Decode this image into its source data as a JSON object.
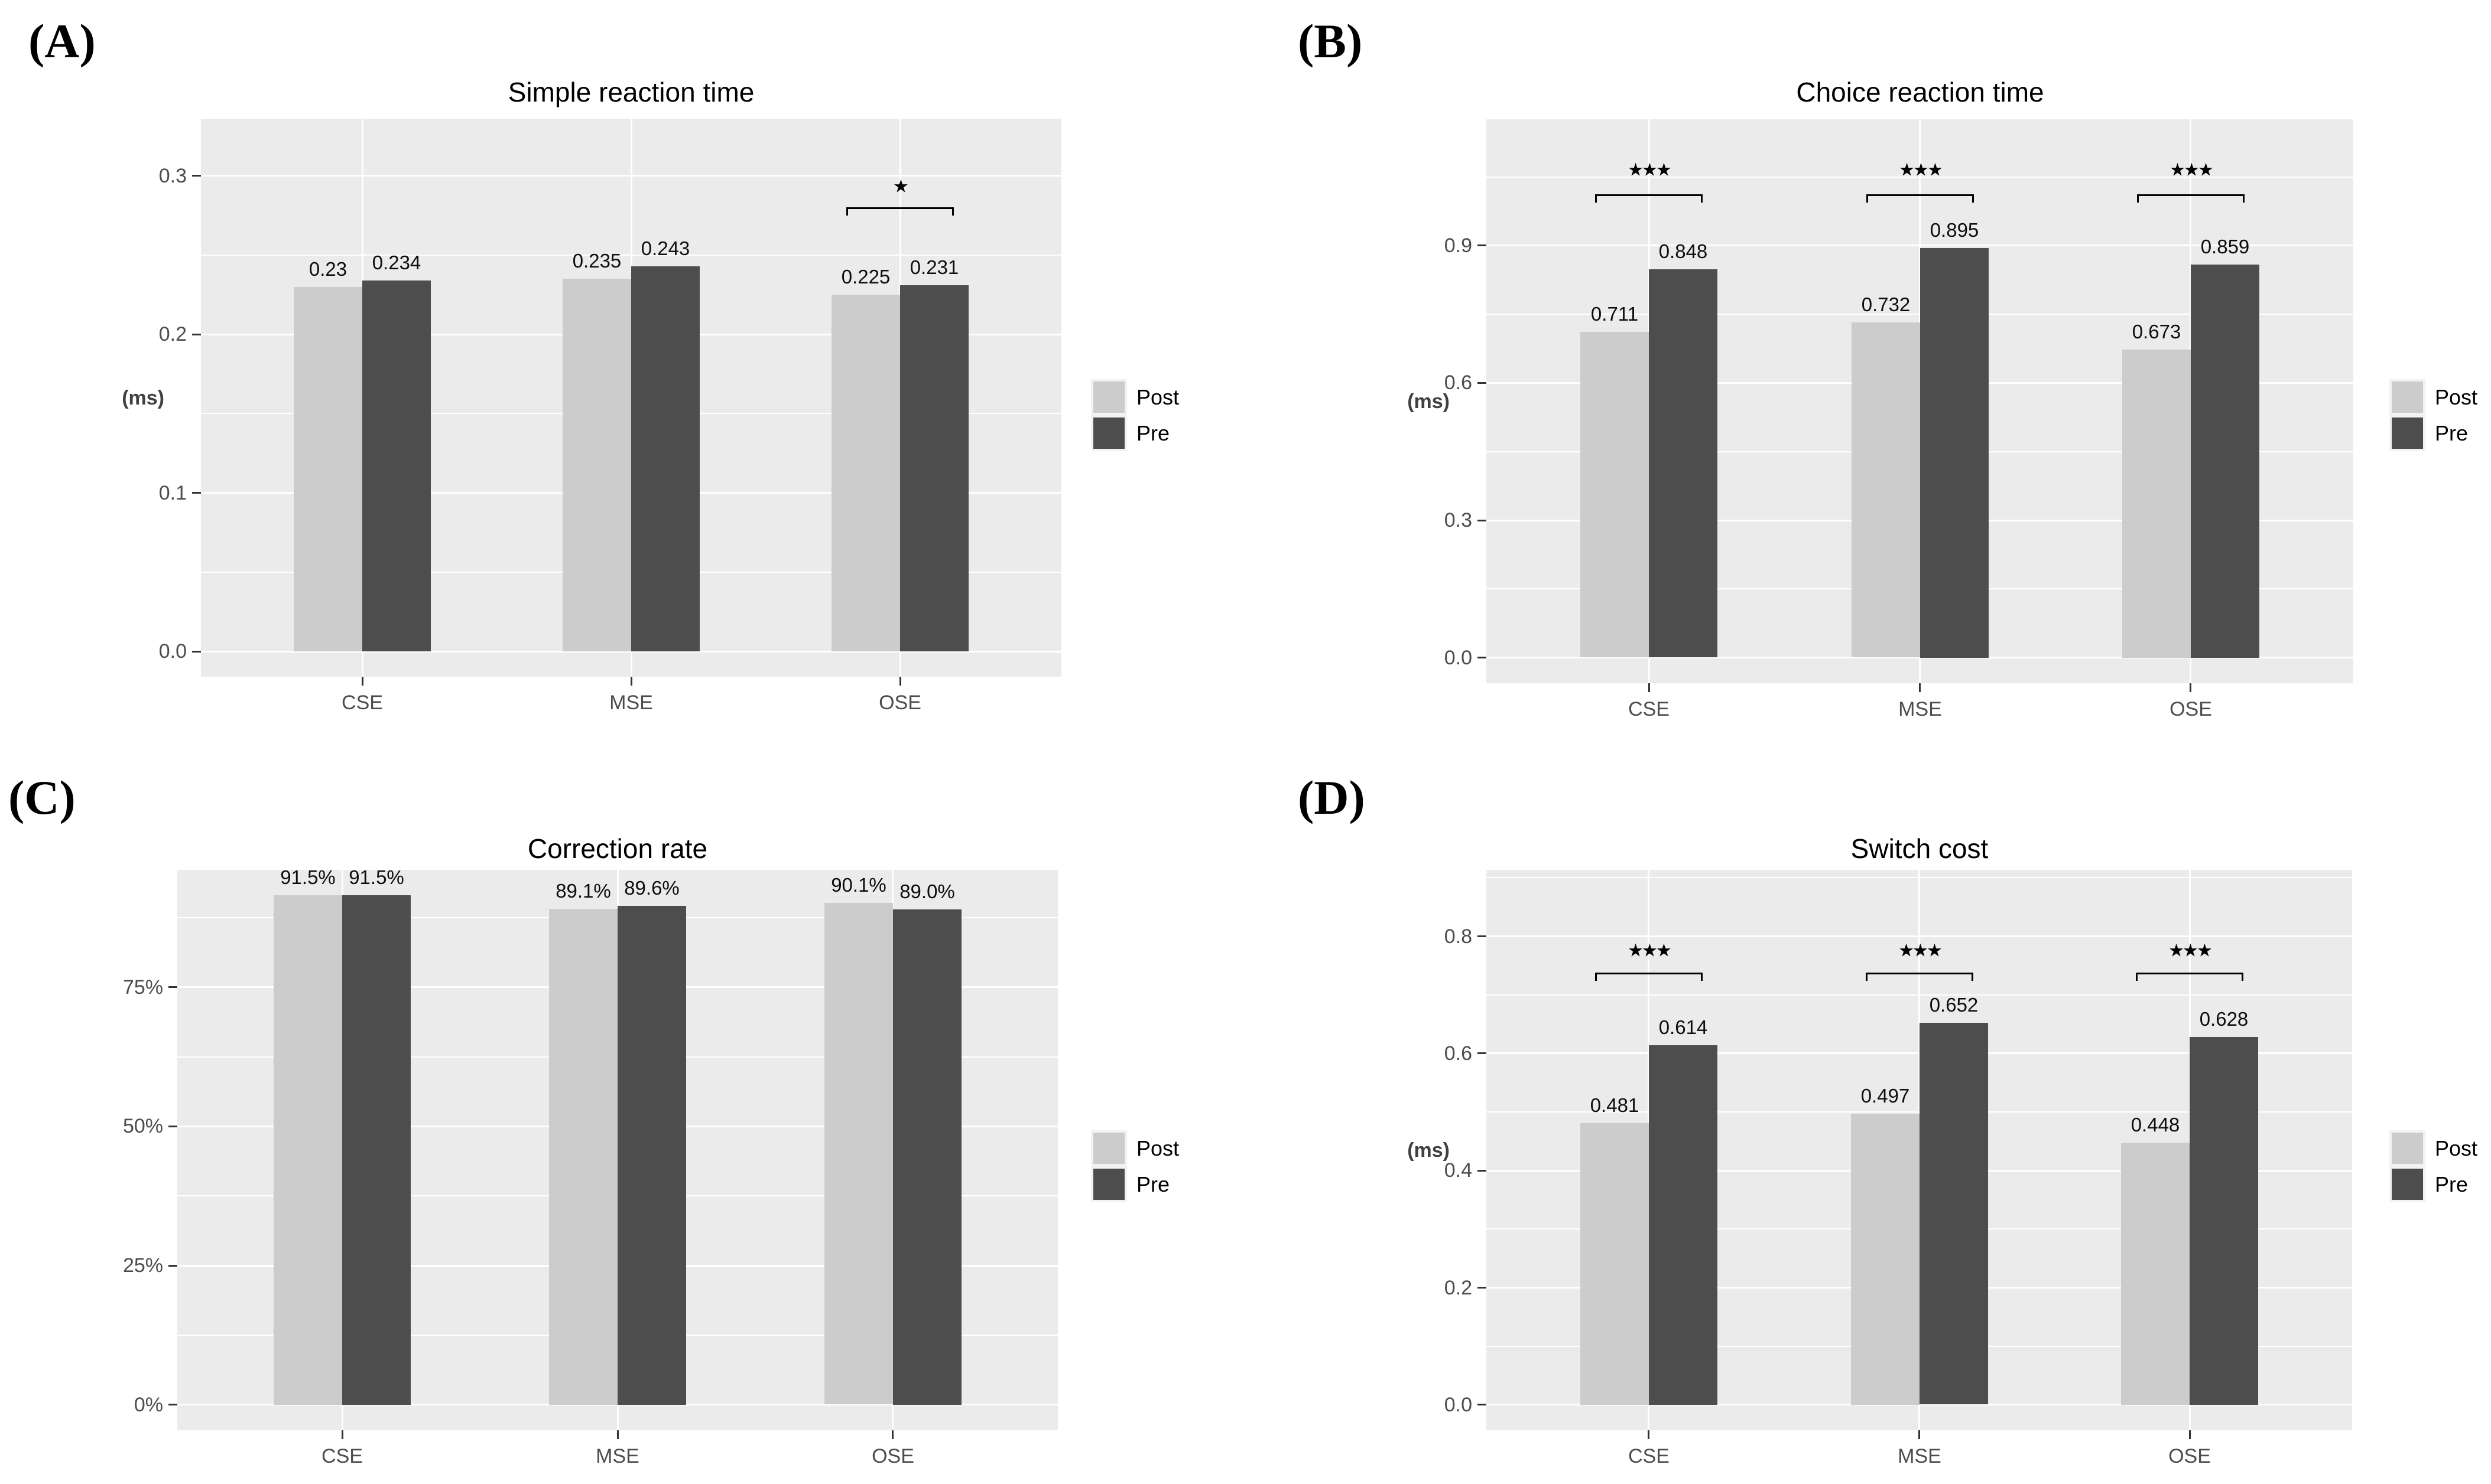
{
  "figure_bg": "#ffffff",
  "panel_bg": "#ebebeb",
  "gridline_color": "#ffffff",
  "tick_text_color": "#4d4d4d",
  "legend": {
    "key_bg": "#f2f2f2",
    "items": [
      {
        "label": "Post",
        "color": "#cccccc"
      },
      {
        "label": "Pre",
        "color": "#4d4d4d"
      }
    ]
  },
  "chart_data": [
    {
      "type": "bar",
      "panel_letter": "(A)",
      "title": "Simple reaction time",
      "ylabel": "(ms)",
      "categories": [
        "CSE",
        "MSE",
        "OSE"
      ],
      "series": [
        {
          "name": "Post",
          "color": "#cccccc",
          "values": [
            0.23,
            0.235,
            0.225
          ],
          "labels": [
            "0.23",
            "0.235",
            "0.225"
          ]
        },
        {
          "name": "Pre",
          "color": "#4d4d4d",
          "values": [
            0.234,
            0.243,
            0.231
          ],
          "labels": [
            "0.234",
            "0.243",
            "0.231"
          ]
        }
      ],
      "ylim": [
        0,
        0.32
      ],
      "yticks": [
        {
          "v": 0,
          "label": "0.0"
        },
        {
          "v": 0.1,
          "label": "0.1"
        },
        {
          "v": 0.2,
          "label": "0.2"
        },
        {
          "v": 0.3,
          "label": "0.3"
        }
      ],
      "yminor": [
        0.05,
        0.15,
        0.25
      ],
      "grid": true,
      "legend_position": "right",
      "annotations": [
        {
          "category": "OSE",
          "text": "★",
          "star_y": 0.293,
          "bracket_y": 0.28
        }
      ]
    },
    {
      "type": "bar",
      "panel_letter": "(B)",
      "title": "Choice reaction time",
      "ylabel": "(ms)",
      "categories": [
        "CSE",
        "MSE",
        "OSE"
      ],
      "series": [
        {
          "name": "Post",
          "color": "#cccccc",
          "values": [
            0.711,
            0.732,
            0.673
          ],
          "labels": [
            "0.711",
            "0.732",
            "0.673"
          ]
        },
        {
          "name": "Pre",
          "color": "#4d4d4d",
          "values": [
            0.848,
            0.895,
            0.859
          ],
          "labels": [
            "0.848",
            "0.895",
            "0.859"
          ]
        }
      ],
      "ylim": [
        0,
        1.12
      ],
      "yticks": [
        {
          "v": 0,
          "label": "0.0"
        },
        {
          "v": 0.3,
          "label": "0.3"
        },
        {
          "v": 0.6,
          "label": "0.6"
        },
        {
          "v": 0.9,
          "label": "0.9"
        }
      ],
      "yminor": [
        0.15,
        0.45,
        0.75,
        1.05
      ],
      "grid": true,
      "legend_position": "right",
      "annotations": [
        {
          "category": "CSE",
          "text": "★★★",
          "star_y": 1.065,
          "bracket_y": 1.012
        },
        {
          "category": "MSE",
          "text": "★★★",
          "star_y": 1.065,
          "bracket_y": 1.012
        },
        {
          "category": "OSE",
          "text": "★★★",
          "star_y": 1.065,
          "bracket_y": 1.012
        }
      ]
    },
    {
      "type": "bar",
      "panel_letter": "(C)",
      "title": "Correction rate",
      "ylabel": "",
      "categories": [
        "CSE",
        "MSE",
        "OSE"
      ],
      "series": [
        {
          "name": "Post",
          "color": "#cccccc",
          "values": [
            91.5,
            89.1,
            90.1
          ],
          "labels": [
            "91.5%",
            "89.1%",
            "90.1%"
          ]
        },
        {
          "name": "Pre",
          "color": "#4d4d4d",
          "values": [
            91.5,
            89.6,
            89.0
          ],
          "labels": [
            "91.5%",
            "89.6%",
            "89.0%"
          ]
        }
      ],
      "ylim": [
        0,
        91.5
      ],
      "yticks": [
        {
          "v": 0,
          "label": "0%"
        },
        {
          "v": 25,
          "label": "25%"
        },
        {
          "v": 50,
          "label": "50%"
        },
        {
          "v": 75,
          "label": "75%"
        }
      ],
      "yminor": [
        12.5,
        37.5,
        62.5,
        87.5
      ],
      "grid": true,
      "legend_position": "right",
      "annotations": []
    },
    {
      "type": "bar",
      "panel_letter": "(D)",
      "title": "Switch cost",
      "ylabel": "(ms)",
      "categories": [
        "CSE",
        "MSE",
        "OSE"
      ],
      "series": [
        {
          "name": "Post",
          "color": "#cccccc",
          "values": [
            0.481,
            0.497,
            0.448
          ],
          "labels": [
            "0.481",
            "0.497",
            "0.448"
          ]
        },
        {
          "name": "Pre",
          "color": "#4d4d4d",
          "values": [
            0.614,
            0.652,
            0.628
          ],
          "labels": [
            "0.614",
            "0.652",
            "0.628"
          ]
        }
      ],
      "ylim": [
        0,
        0.87
      ],
      "yticks": [
        {
          "v": 0,
          "label": "0.0"
        },
        {
          "v": 0.2,
          "label": "0.2"
        },
        {
          "v": 0.4,
          "label": "0.4"
        },
        {
          "v": 0.6,
          "label": "0.6"
        },
        {
          "v": 0.8,
          "label": "0.8"
        }
      ],
      "yminor": [
        0.1,
        0.3,
        0.5,
        0.7,
        0.9
      ],
      "grid": true,
      "legend_position": "right",
      "annotations": [
        {
          "category": "CSE",
          "text": "★★★",
          "star_y": 0.775,
          "bracket_y": 0.738
        },
        {
          "category": "MSE",
          "text": "★★★",
          "star_y": 0.775,
          "bracket_y": 0.738
        },
        {
          "category": "OSE",
          "text": "★★★",
          "star_y": 0.775,
          "bracket_y": 0.738
        }
      ]
    }
  ]
}
